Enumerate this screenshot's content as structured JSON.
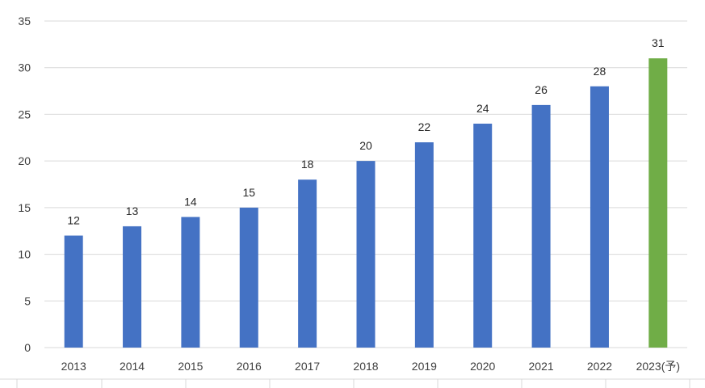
{
  "chart_data": {
    "type": "bar",
    "title": "",
    "xlabel": "",
    "ylabel": "",
    "categories": [
      "2013",
      "2014",
      "2015",
      "2016",
      "2017",
      "2018",
      "2019",
      "2020",
      "2021",
      "2022",
      "2023(予)"
    ],
    "values": [
      12,
      13,
      14,
      15,
      18,
      20,
      22,
      24,
      26,
      28,
      31
    ],
    "ylim": [
      0,
      35
    ],
    "yticks": [
      0,
      5,
      10,
      15,
      20,
      25,
      30,
      35
    ],
    "ytick_labels": [
      "0",
      "5",
      "10",
      "15",
      "20",
      "25",
      "30",
      "35"
    ],
    "data_labels": [
      "12",
      "13",
      "14",
      "15",
      "18",
      "20",
      "22",
      "24",
      "26",
      "28",
      "31"
    ],
    "grid": true,
    "legend": "none",
    "colors": {
      "bar": "#4472c4",
      "forecast_bar": "#70ad47",
      "grid": "#d9d9d9",
      "text": "#404040"
    },
    "highlight_index": 10
  }
}
